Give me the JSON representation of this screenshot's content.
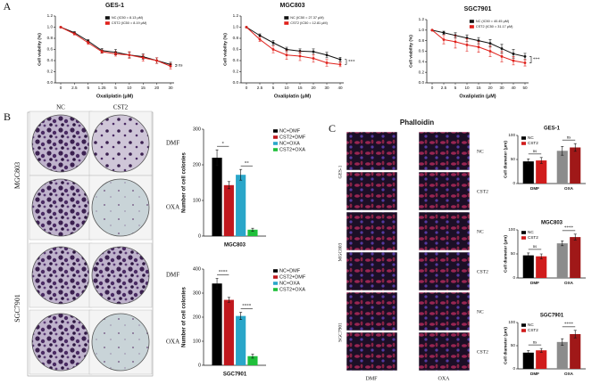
{
  "figure": {
    "panel_labels": [
      "A",
      "B",
      "C"
    ],
    "colony_columns": [
      "NC",
      "CST2"
    ],
    "colony_rows": [
      "DMF",
      "OXA",
      "DMF",
      "OXA"
    ],
    "colony_cell_lines": [
      "MGC803",
      "SGC7901"
    ],
    "phalloidin_title": "Phalloidin",
    "phalloidin_rows": [
      "NC",
      "CST2",
      "NC",
      "CST2",
      "NC",
      "CST2"
    ],
    "phalloidin_cell_lines": [
      "GES-1",
      "MGC803",
      "SGC7901"
    ],
    "phalloidin_columns": [
      "DMF",
      "OXA"
    ]
  },
  "chart_data": [
    {
      "type": "line",
      "title": "GES-1",
      "xlabel": "Oxaliplatin (μM)",
      "ylabel": "Cell viability (%)",
      "categories": [
        "0",
        "2.5",
        "5",
        "1.25",
        "5",
        "10",
        "15",
        "20",
        "30"
      ],
      "series": [
        {
          "name": "NC (IC50 = 8.13 μM)",
          "color": "#111111",
          "values": [
            1.0,
            0.9,
            0.75,
            0.58,
            0.55,
            0.5,
            0.47,
            0.4,
            0.33
          ],
          "errors": [
            0.01,
            0.02,
            0.03,
            0.04,
            0.05,
            0.05,
            0.05,
            0.05,
            0.04
          ]
        },
        {
          "name": "CST2 (IC50 = 8.19 μM)",
          "color": "#e0201b",
          "values": [
            1.0,
            0.88,
            0.72,
            0.56,
            0.52,
            0.5,
            0.45,
            0.4,
            0.3
          ],
          "errors": [
            0.01,
            0.02,
            0.03,
            0.03,
            0.04,
            0.06,
            0.06,
            0.05,
            0.05
          ]
        }
      ],
      "ylim": [
        0,
        1.2
      ],
      "yticks": [
        {
          "value": 0,
          "label": "0.0"
        },
        0.2,
        0.4,
        0.6,
        0.8,
        {
          "value": 1,
          "label": "1.0"
        },
        1.2
      ],
      "legend": "upper right",
      "annotations": [
        "ns"
      ]
    },
    {
      "type": "line",
      "title": "MGC803",
      "xlabel": "Oxaliplatin (μM)",
      "ylabel": "Cell viability (%)",
      "categories": [
        "0",
        "2.5",
        "5",
        "10",
        "15",
        "20",
        "30",
        "40"
      ],
      "series": [
        {
          "name": "NC (IC50 = 27.37 μM)",
          "color": "#111111",
          "values": [
            1.0,
            0.85,
            0.72,
            0.6,
            0.57,
            0.56,
            0.5,
            0.42
          ],
          "errors": [
            0.01,
            0.03,
            0.04,
            0.04,
            0.04,
            0.05,
            0.05,
            0.04
          ]
        },
        {
          "name": "CST2 (IC50 = 12.81 μM)",
          "color": "#e0201b",
          "values": [
            1.0,
            0.78,
            0.6,
            0.5,
            0.48,
            0.44,
            0.36,
            0.33
          ],
          "errors": [
            0.01,
            0.04,
            0.06,
            0.08,
            0.08,
            0.07,
            0.06,
            0.04
          ]
        }
      ],
      "ylim": [
        0,
        1.2
      ],
      "yticks": [
        {
          "value": 0,
          "label": "0.0"
        },
        0.2,
        0.4,
        0.6,
        0.8,
        {
          "value": 1,
          "label": "1.0"
        },
        1.2
      ],
      "legend": "upper right",
      "annotations": [
        "***"
      ]
    },
    {
      "type": "line",
      "title": "SGC7901",
      "xlabel": "Oxaliplatin (μM)",
      "ylabel": "Cell viability (%)",
      "categories": [
        "0",
        "2.5",
        "5",
        "10",
        "15",
        "20",
        "30",
        "40",
        "50"
      ],
      "series": [
        {
          "name": "NC (IC50 = 40.45 μM)",
          "color": "#111111",
          "values": [
            1.0,
            0.95,
            0.9,
            0.85,
            0.8,
            0.75,
            0.65,
            0.55,
            0.5
          ],
          "errors": [
            0.01,
            0.03,
            0.05,
            0.06,
            0.06,
            0.07,
            0.08,
            0.08,
            0.06
          ]
        },
        {
          "name": "CST2 (IC50 = 31.17 μM)",
          "color": "#e0201b",
          "values": [
            1.0,
            0.82,
            0.78,
            0.72,
            0.68,
            0.6,
            0.5,
            0.42,
            0.38
          ],
          "errors": [
            0.01,
            0.08,
            0.12,
            0.12,
            0.1,
            0.1,
            0.1,
            0.08,
            0.06
          ]
        }
      ],
      "ylim": [
        0,
        1.2
      ],
      "yticks": [
        {
          "value": 0,
          "label": "0.0"
        },
        0.2,
        0.4,
        0.6,
        0.8,
        {
          "value": 1,
          "label": "1.0"
        },
        1.2
      ],
      "legend": "upper right",
      "annotations": [
        "***"
      ]
    },
    {
      "type": "bar",
      "xlabel": "MGC803",
      "ylabel": "Number of cell colonies",
      "categories": [
        null
      ],
      "series": [
        {
          "name": "NC+DMF",
          "color": "#000000",
          "values": [
            220
          ],
          "errors": [
            22
          ]
        },
        {
          "name": "CST2+DMF",
          "color": "#c0181e",
          "values": [
            143
          ],
          "errors": [
            10
          ]
        },
        {
          "name": "NC+OXA",
          "color": "#2aa6c9",
          "values": [
            172
          ],
          "errors": [
            15
          ]
        },
        {
          "name": "CST2+OXA",
          "color": "#1fbf3a",
          "values": [
            18
          ],
          "errors": [
            4
          ]
        }
      ],
      "ylim": [
        0,
        300
      ],
      "yticks": [
        0,
        100,
        200,
        300
      ],
      "legend": "right",
      "annotations": [
        "*",
        "**"
      ]
    },
    {
      "type": "bar",
      "xlabel": "SGC7901",
      "ylabel": "Number of cell colonies",
      "categories": [
        null
      ],
      "series": [
        {
          "name": "NC+DMF",
          "color": "#000000",
          "values": [
            340
          ],
          "errors": [
            22
          ]
        },
        {
          "name": "CST2+DMF",
          "color": "#c0181e",
          "values": [
            272
          ],
          "errors": [
            10
          ]
        },
        {
          "name": "NC+OXA",
          "color": "#2aa6c9",
          "values": [
            205
          ],
          "errors": [
            15
          ]
        },
        {
          "name": "CST2+OXA",
          "color": "#1fbf3a",
          "values": [
            38
          ],
          "errors": [
            8
          ]
        }
      ],
      "ylim": [
        0,
        400
      ],
      "yticks": [
        0,
        100,
        200,
        300,
        400
      ],
      "legend": "right",
      "annotations": [
        "****",
        "****"
      ]
    },
    {
      "type": "bar",
      "title": "GES-1",
      "ylabel": "Cell diameter (μm)",
      "categories": [
        "DMF",
        "OXA"
      ],
      "series": [
        {
          "name": "NC",
          "color": "#000000",
          "colors": [
            "#000000",
            "#8c8c8c"
          ],
          "values": [
            46,
            68
          ],
          "errors": [
            5,
            9
          ]
        },
        {
          "name": "CST2",
          "color": "#d01c1c",
          "colors": [
            "#d01c1c",
            "#a01818"
          ],
          "values": [
            48,
            75
          ],
          "errors": [
            6,
            8
          ]
        }
      ],
      "ylim": [
        0,
        100
      ],
      "yticks": [
        0,
        50,
        100
      ],
      "legend": "upper left",
      "annotations": [
        "ns",
        "ns"
      ]
    },
    {
      "type": "bar",
      "title": "MGC803",
      "ylabel": "Cell diameter (μm)",
      "categories": [
        "DMF",
        "OXA"
      ],
      "series": [
        {
          "name": "NC",
          "color": "#000000",
          "colors": [
            "#000000",
            "#8c8c8c"
          ],
          "values": [
            47,
            72
          ],
          "errors": [
            5,
            5
          ]
        },
        {
          "name": "CST2",
          "color": "#d01c1c",
          "colors": [
            "#d01c1c",
            "#a01818"
          ],
          "values": [
            45,
            85
          ],
          "errors": [
            5,
            6
          ]
        }
      ],
      "ylim": [
        0,
        100
      ],
      "yticks": [
        0,
        50,
        100
      ],
      "legend": "upper left",
      "annotations": [
        "ns",
        "****"
      ]
    },
    {
      "type": "bar",
      "title": "SGC7901",
      "ylabel": "Cell diameter (μm)",
      "categories": [
        "DMF",
        "OXA"
      ],
      "series": [
        {
          "name": "NC",
          "color": "#000000",
          "colors": [
            "#000000",
            "#8c8c8c"
          ],
          "values": [
            35,
            58
          ],
          "errors": [
            4,
            7
          ]
        },
        {
          "name": "CST2",
          "color": "#d01c1c",
          "colors": [
            "#d01c1c",
            "#a01818"
          ],
          "values": [
            40,
            75
          ],
          "errors": [
            4,
            8
          ]
        }
      ],
      "ylim": [
        0,
        100
      ],
      "yticks": [
        0,
        50,
        100
      ],
      "legend": "upper left",
      "annotations": [
        "ns",
        "****"
      ]
    }
  ]
}
